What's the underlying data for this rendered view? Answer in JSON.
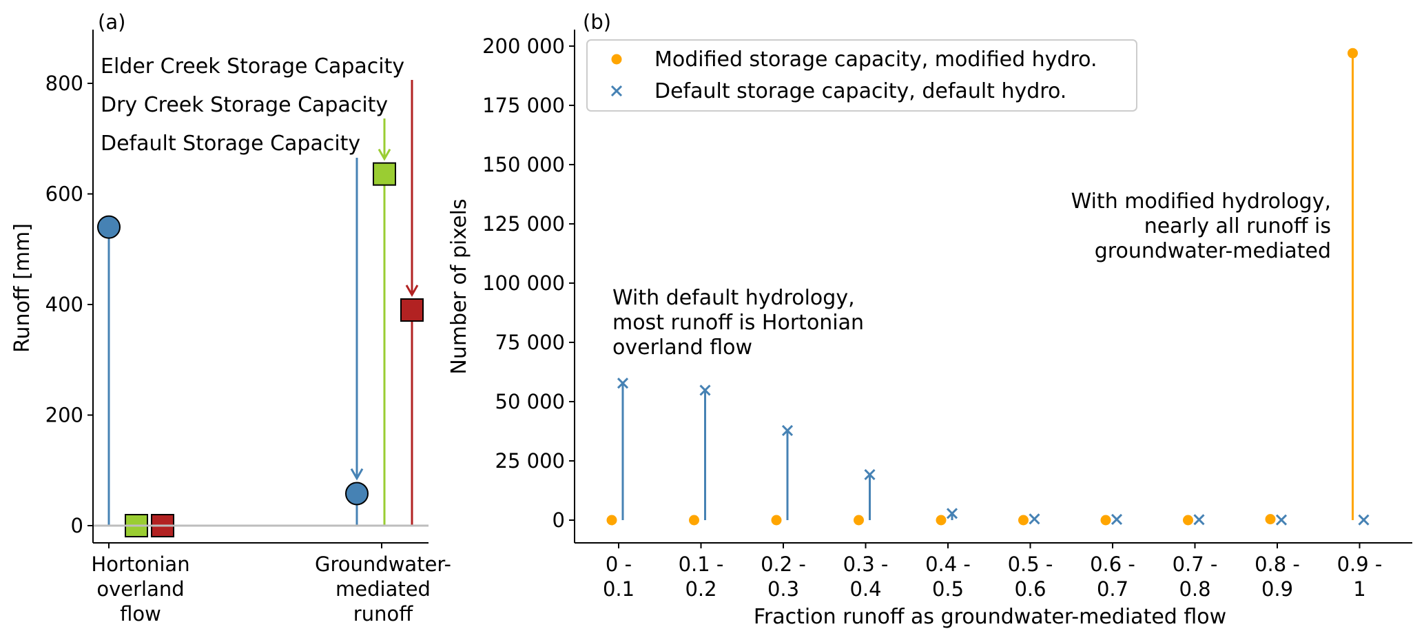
{
  "chart_data": [
    {
      "panel": "(a)",
      "type": "scatter",
      "title": "",
      "xlabel": "",
      "ylabel": "Runoff [mm]",
      "ylim": [
        -25,
        900
      ],
      "yticks": [
        0,
        200,
        400,
        600,
        800
      ],
      "categories": [
        {
          "lines": [
            "Hortonian",
            "overland",
            "flow"
          ]
        },
        {
          "lines": [
            "Groundwater-",
            "mediated",
            "runoff"
          ]
        }
      ],
      "annotations": [
        "Elder Creek Storage Capacity",
        "Dry Creek Storage Capacity",
        "Default Storage Capacity"
      ],
      "series": [
        {
          "marker": "circle",
          "color": "#4682b4",
          "values": [
            540,
            58
          ]
        },
        {
          "marker": "square",
          "color": "#9acd32",
          "values": [
            0,
            636
          ]
        },
        {
          "marker": "square",
          "color": "#b22222",
          "values": [
            0,
            390
          ]
        }
      ],
      "grid": false,
      "legend": "none"
    },
    {
      "panel": "(b)",
      "type": "scatter",
      "title": "",
      "xlabel": "Fraction runoff as groundwater-mediated flow",
      "ylabel": "Number of pixels",
      "ylim": [
        -10000,
        207000
      ],
      "yticks": [
        "0",
        "25 000",
        "50 000",
        "75 000",
        "100 000",
        "125 000",
        "150 000",
        "175 000",
        "200 000"
      ],
      "categories": [
        {
          "lines": [
            "0 -",
            "0.1"
          ]
        },
        {
          "lines": [
            "0.1 -",
            "0.2"
          ]
        },
        {
          "lines": [
            "0.2 -",
            "0.3"
          ]
        },
        {
          "lines": [
            "0.3 -",
            "0.4"
          ]
        },
        {
          "lines": [
            "0.4 -",
            "0.5"
          ]
        },
        {
          "lines": [
            "0.5 -",
            "0.6"
          ]
        },
        {
          "lines": [
            "0.6 -",
            "0.7"
          ]
        },
        {
          "lines": [
            "0.7 -",
            "0.8"
          ]
        },
        {
          "lines": [
            "0.8 -",
            "0.9"
          ]
        },
        {
          "lines": [
            "0.9 -",
            "1"
          ]
        }
      ],
      "series": [
        {
          "name": "Modified storage capacity, modified hydro.",
          "marker": "circle",
          "color": "#ffa500",
          "values": [
            0,
            0,
            0,
            0,
            0,
            0,
            0,
            0,
            400,
            197000
          ]
        },
        {
          "name": "Default storage capacity, default hydro.",
          "marker": "x",
          "color": "#4682b4",
          "values": [
            57800,
            54800,
            37800,
            19200,
            2800,
            500,
            300,
            200,
            100,
            100
          ]
        }
      ],
      "annotations": [
        {
          "lines": [
            "With default hydrology,",
            "most runoff is Hortonian",
            "overland flow"
          ]
        },
        {
          "lines": [
            "With modified hydrology,",
            "nearly all runoff is",
            "groundwater-mediated"
          ]
        }
      ],
      "grid": false,
      "legend": "top-left"
    }
  ]
}
